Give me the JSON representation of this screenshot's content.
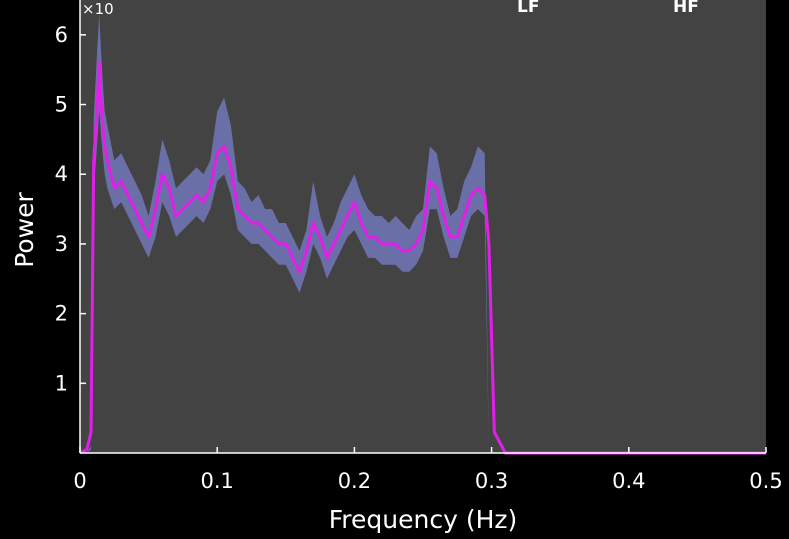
{
  "chart_data": {
    "type": "area",
    "title_fragments": [
      "LF",
      "HF"
    ],
    "xlabel": "Frequency (Hz)",
    "ylabel": "Power",
    "y_multiplier_label": "×10",
    "xlim": [
      0,
      0.5
    ],
    "ylim": [
      0,
      6.5
    ],
    "xticks": [
      0,
      0.1,
      0.2,
      0.3,
      0.4,
      0.5
    ],
    "xtick_labels": [
      "0",
      "0.1",
      "0.2",
      "0.3",
      "0.4",
      "0.5"
    ],
    "yticks": [
      1,
      2,
      3,
      4,
      5,
      6
    ],
    "ytick_labels": [
      "1",
      "2",
      "3",
      "4",
      "5",
      "6"
    ],
    "grid": false,
    "colors": {
      "background": "#000000",
      "plot_area": "#434343",
      "band": "#6b6fa8",
      "mean_line": "#e020e8",
      "axis": "#ffffff"
    },
    "series": [
      {
        "kind": "band",
        "x": [
          0,
          0.005,
          0.008,
          0.01,
          0.012,
          0.014,
          0.016,
          0.018,
          0.02,
          0.025,
          0.03,
          0.035,
          0.04,
          0.045,
          0.05,
          0.055,
          0.06,
          0.065,
          0.07,
          0.075,
          0.08,
          0.085,
          0.09,
          0.095,
          0.1,
          0.105,
          0.11,
          0.115,
          0.12,
          0.125,
          0.13,
          0.135,
          0.14,
          0.145,
          0.15,
          0.155,
          0.16,
          0.165,
          0.17,
          0.175,
          0.18,
          0.185,
          0.19,
          0.195,
          0.2,
          0.205,
          0.21,
          0.215,
          0.22,
          0.225,
          0.23,
          0.235,
          0.24,
          0.245,
          0.25,
          0.255,
          0.26,
          0.265,
          0.27,
          0.275,
          0.28,
          0.285,
          0.29,
          0.295,
          0.298
        ],
        "upper": [
          0,
          0,
          0.1,
          4.8,
          5.6,
          6.3,
          5.5,
          4.9,
          4.7,
          4.2,
          4.3,
          4.1,
          3.9,
          3.7,
          3.4,
          3.9,
          4.5,
          4.2,
          3.8,
          3.9,
          4.0,
          4.1,
          4.0,
          4.2,
          4.9,
          5.1,
          4.7,
          3.9,
          3.8,
          3.6,
          3.7,
          3.5,
          3.5,
          3.3,
          3.3,
          3.1,
          2.9,
          3.2,
          3.9,
          3.4,
          3.1,
          3.3,
          3.6,
          3.8,
          4.0,
          3.7,
          3.5,
          3.4,
          3.4,
          3.3,
          3.4,
          3.3,
          3.2,
          3.4,
          3.5,
          4.4,
          4.3,
          3.8,
          3.4,
          3.5,
          3.9,
          4.1,
          4.4,
          4.3,
          0
        ],
        "lower": [
          0,
          0,
          0.05,
          3.8,
          4.3,
          4.9,
          4.4,
          4.0,
          3.8,
          3.5,
          3.6,
          3.4,
          3.2,
          3.0,
          2.8,
          3.1,
          3.6,
          3.4,
          3.1,
          3.2,
          3.3,
          3.4,
          3.3,
          3.5,
          3.9,
          4.0,
          3.7,
          3.2,
          3.1,
          3.0,
          3.0,
          2.9,
          2.8,
          2.7,
          2.7,
          2.5,
          2.3,
          2.6,
          3.0,
          2.8,
          2.5,
          2.7,
          2.9,
          3.1,
          3.2,
          3.0,
          2.8,
          2.8,
          2.7,
          2.7,
          2.7,
          2.6,
          2.6,
          2.7,
          2.9,
          3.5,
          3.5,
          3.1,
          2.8,
          2.8,
          3.1,
          3.4,
          3.5,
          3.4,
          0
        ]
      },
      {
        "kind": "line",
        "x": [
          0,
          0.005,
          0.008,
          0.01,
          0.012,
          0.014,
          0.016,
          0.018,
          0.02,
          0.025,
          0.03,
          0.035,
          0.04,
          0.045,
          0.05,
          0.055,
          0.06,
          0.065,
          0.07,
          0.075,
          0.08,
          0.085,
          0.09,
          0.095,
          0.1,
          0.105,
          0.11,
          0.115,
          0.12,
          0.125,
          0.13,
          0.135,
          0.14,
          0.145,
          0.15,
          0.155,
          0.16,
          0.165,
          0.17,
          0.175,
          0.18,
          0.185,
          0.19,
          0.195,
          0.2,
          0.205,
          0.21,
          0.215,
          0.22,
          0.225,
          0.23,
          0.235,
          0.24,
          0.245,
          0.25,
          0.255,
          0.26,
          0.265,
          0.27,
          0.275,
          0.28,
          0.285,
          0.29,
          0.295,
          0.298,
          0.302,
          0.31,
          0.35,
          0.4,
          0.45,
          0.5
        ],
        "y": [
          0,
          0.05,
          0.3,
          4.2,
          4.8,
          5.6,
          4.8,
          4.4,
          4.2,
          3.8,
          3.9,
          3.7,
          3.5,
          3.3,
          3.1,
          3.5,
          4.0,
          3.8,
          3.4,
          3.5,
          3.6,
          3.7,
          3.6,
          3.8,
          4.3,
          4.4,
          4.1,
          3.5,
          3.4,
          3.3,
          3.3,
          3.2,
          3.1,
          3.0,
          3.0,
          2.8,
          2.6,
          2.9,
          3.3,
          3.1,
          2.8,
          3.0,
          3.2,
          3.4,
          3.6,
          3.3,
          3.1,
          3.1,
          3.0,
          3.0,
          3.0,
          2.9,
          2.9,
          3.0,
          3.2,
          3.9,
          3.8,
          3.4,
          3.1,
          3.1,
          3.4,
          3.7,
          3.8,
          3.7,
          3.0,
          0.3,
          0.0,
          0.0,
          0.0,
          0.0,
          0.0
        ]
      }
    ]
  }
}
